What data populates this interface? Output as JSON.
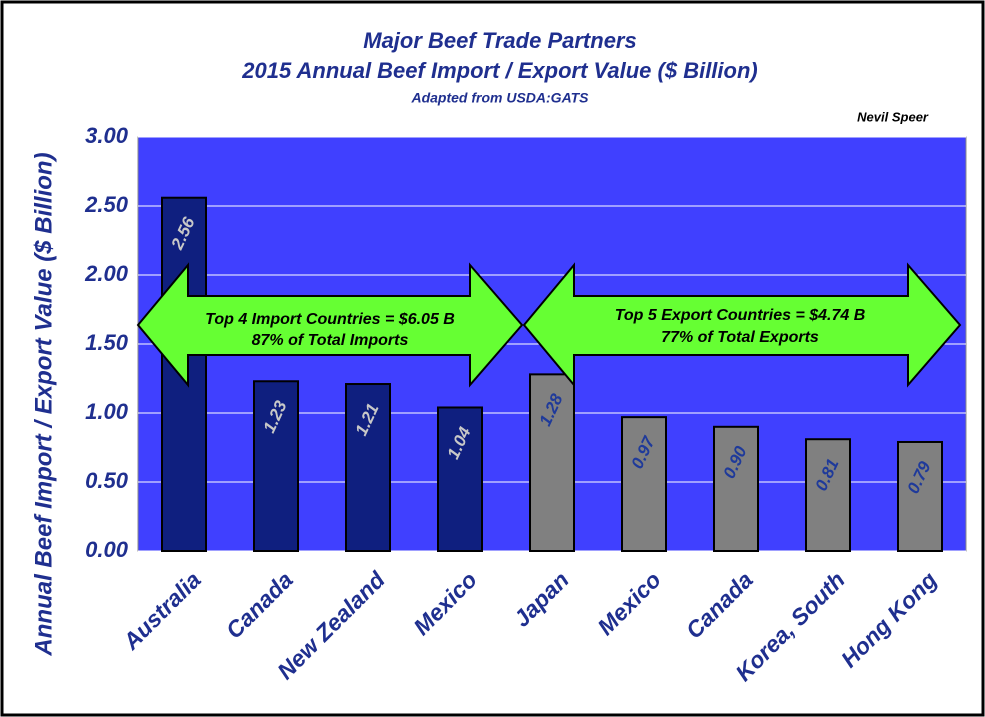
{
  "chart_data": {
    "type": "bar",
    "title": [
      "Major Beef Trade Partners",
      "2015 Annual Beef Import / Export Value ($ Billion)"
    ],
    "subtitle": "Adapted from USDA:GATS",
    "author": "Nevil Speer",
    "ylabel": "Annual Beef Import / Export Value ($ Billion)",
    "categories": [
      "Australia",
      "Canada",
      "New Zealand",
      "Mexico",
      "Japan",
      "Mexico",
      "Canada",
      "Korea, South",
      "Hong Kong"
    ],
    "values": [
      2.56,
      1.23,
      1.21,
      1.04,
      1.28,
      0.97,
      0.9,
      0.81,
      0.79
    ],
    "value_labels": [
      "2.56",
      "1.23",
      "1.21",
      "1.04",
      "1.28",
      "0.97",
      "0.90",
      "0.81",
      "0.79"
    ],
    "colors": [
      "#0f1f7f",
      "#0f1f7f",
      "#0f1f7f",
      "#0f1f7f",
      "#808080",
      "#808080",
      "#808080",
      "#808080",
      "#808080"
    ],
    "value_label_colors": [
      "#c8c8c8",
      "#c8c8c8",
      "#c8c8c8",
      "#c8c8c8",
      "#1f3a9a",
      "#1f3a9a",
      "#1f3a9a",
      "#1f3a9a",
      "#1f3a9a"
    ],
    "ylim": [
      0,
      3
    ],
    "yticks": [
      {
        "value": 0,
        "label": "0.00"
      },
      {
        "value": 0.5,
        "label": "0.50"
      },
      {
        "value": 1,
        "label": "1.00"
      },
      {
        "value": 1.5,
        "label": "1.50"
      },
      {
        "value": 2,
        "label": "2.00"
      },
      {
        "value": 2.5,
        "label": "2.50"
      },
      {
        "value": 3,
        "label": "3.00"
      }
    ],
    "grid": true,
    "background": "#4040ff",
    "annotations": [
      [
        "Top 4 Import Countries = $6.05 B",
        "87% of Total Imports"
      ],
      [
        "Top 5 Export Countries = $4.74 B",
        "77% of Total Exports"
      ]
    ]
  }
}
